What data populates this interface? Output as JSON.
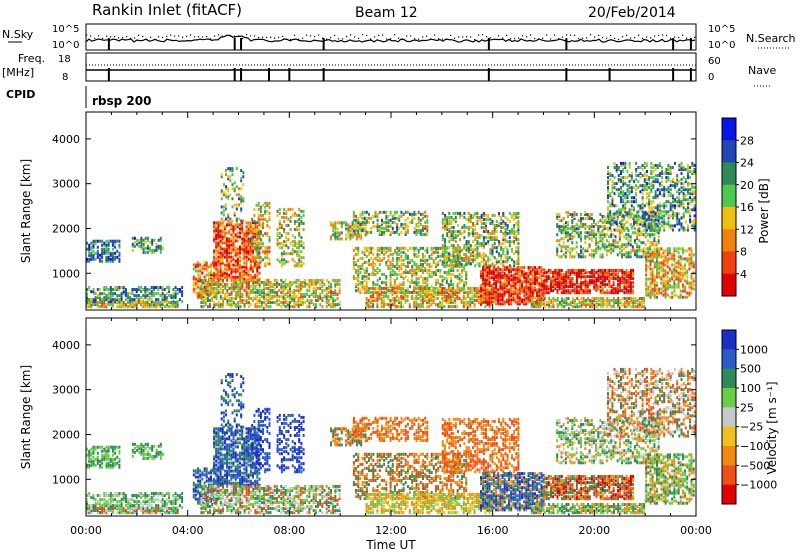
{
  "header": {
    "station": "Rankin Inlet (fitACF)",
    "beam": "Beam 12",
    "date": "20/Feb/2014"
  },
  "noise_panel": {
    "left_label": "N.Sky",
    "right_label": "N.Search",
    "left_ticks": [
      "10^5",
      "10^0"
    ],
    "right_ticks": [
      "10^5",
      "10^0"
    ]
  },
  "freq_panel": {
    "left_label_1": "Freq.",
    "left_label_2": "[MHz]",
    "left_ticks": [
      "18",
      "8"
    ],
    "right_label": "Nave",
    "right_ticks": [
      "60",
      "0"
    ]
  },
  "cpid_panel": {
    "label": "CPID",
    "program": "rbsp 200"
  },
  "chart_data": [
    {
      "type": "heatmap",
      "quantity": "Power",
      "ylabel": "Slant Range [km]",
      "xlabel": "",
      "x_ticks": [
        "00:00",
        "04:00",
        "08:00",
        "12:00",
        "16:00",
        "20:00",
        "00:00"
      ],
      "y_ticks": [
        "1000",
        "2000",
        "3000",
        "4000"
      ],
      "ylim": [
        180,
        4600
      ],
      "xlim_hours": [
        0,
        24
      ],
      "colorbar_label": "Power [dB]",
      "colorbar_ticks": [
        "4",
        "8",
        "12",
        "16",
        "20",
        "24",
        "28"
      ],
      "colorbar_colors": [
        "#0a14e6",
        "#1e46b4",
        "#2e8b57",
        "#4fc84f",
        "#f0c010",
        "#f08010",
        "#f04010",
        "#e00000"
      ]
    },
    {
      "type": "heatmap",
      "quantity": "Velocity",
      "ylabel": "Slant Range [km]",
      "xlabel": "Time UT",
      "x_ticks": [
        "00:00",
        "04:00",
        "08:00",
        "12:00",
        "16:00",
        "20:00",
        "00:00"
      ],
      "y_ticks": [
        "1000",
        "2000",
        "3000",
        "4000"
      ],
      "ylim": [
        180,
        4600
      ],
      "xlim_hours": [
        0,
        24
      ],
      "colorbar_label": "Velocity [m s⁻¹]",
      "colorbar_ticks": [
        "1000",
        "500",
        "100",
        "25",
        "−25",
        "−100",
        "−500",
        "−1000"
      ],
      "colorbar_colors": [
        "#1c2ec8",
        "#2a5cc8",
        "#2e8b57",
        "#6acd46",
        "#c8c8c8",
        "#f0c020",
        "#f08c14",
        "#f05014",
        "#e00000"
      ]
    }
  ]
}
